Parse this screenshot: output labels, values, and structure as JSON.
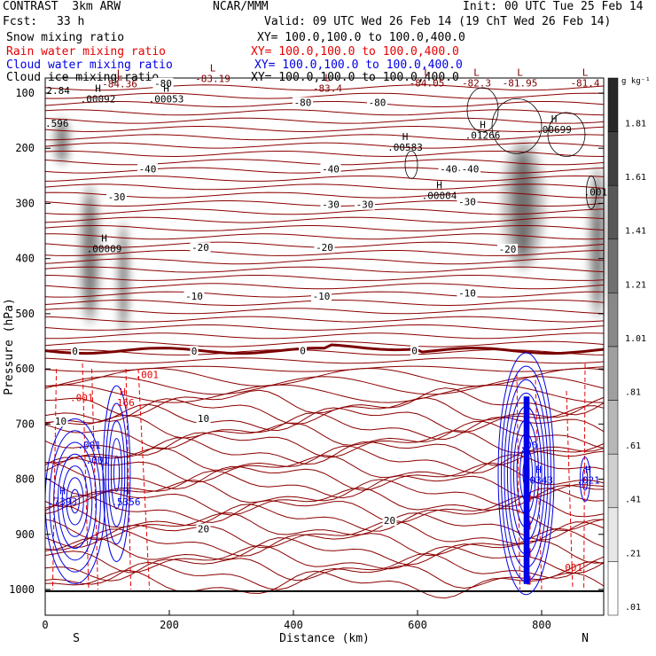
{
  "header": {
    "line1_left": "CONTRAST  3km ARW",
    "line1_center": "NCAR/MMM",
    "line1_right": "Init: 00 UTC Tue 25 Feb 14",
    "fcst_label": "Fcst:",
    "fcst_value": "33 h",
    "valid": "Valid: 09 UTC Wed 26 Feb 14 (19 ChT Wed 26 Feb 14)"
  },
  "fields": [
    {
      "name": "Snow mixing ratio",
      "xy": "XY= 100.0,100.0 to 100.0,400.0",
      "color": "#000000"
    },
    {
      "name": "Rain water mixing ratio",
      "xy": "XY= 100.0,100.0 to 100.0,400.0",
      "color": "#e60000"
    },
    {
      "name": "Cloud water mixing ratio",
      "xy": "XY= 100.0,100.0 to 100.0,400.0",
      "color": "#0000e6"
    },
    {
      "name": "Cloud ice mixing ratio",
      "xy": "XY= 100.0,100.0 to 100.0,400.0",
      "color": "#000000"
    }
  ],
  "colorbar": {
    "unit": "g kg⁻¹",
    "labels": [
      "1.81",
      "1.61",
      "1.41",
      "1.21",
      "1.01",
      ".81",
      ".61",
      ".41",
      ".21",
      ".01"
    ]
  },
  "chart_data": {
    "type": "contour",
    "xlabel": "Distance (km)",
    "ylabel": "Pressure (hPa)",
    "xlim": [
      0,
      900
    ],
    "ylim": [
      1000,
      60
    ],
    "x_ticks": [
      0,
      200,
      400,
      600,
      800
    ],
    "y_ticks": [
      100,
      200,
      300,
      400,
      500,
      600,
      700,
      800,
      900,
      1000
    ],
    "x_end_labels": {
      "left": "S",
      "right": "N"
    },
    "temperature_contours": [
      {
        "label": "-80",
        "x": 190,
        "p": 82
      },
      {
        "label": "-80",
        "x": 415,
        "p": 117
      },
      {
        "label": "-80",
        "x": 535,
        "p": 117
      },
      {
        "label": "-40",
        "x": 165,
        "p": 237
      },
      {
        "label": "-40",
        "x": 460,
        "p": 237
      },
      {
        "label": "-40",
        "x": 685,
        "p": 237
      },
      {
        "label": "-40",
        "x": 650,
        "p": 237
      },
      {
        "label": "-30",
        "x": 115,
        "p": 288
      },
      {
        "label": "-30",
        "x": 460,
        "p": 302
      },
      {
        "label": "-30",
        "x": 515,
        "p": 302
      },
      {
        "label": "-30",
        "x": 680,
        "p": 297
      },
      {
        "label": "-20",
        "x": 250,
        "p": 380
      },
      {
        "label": "-20",
        "x": 450,
        "p": 380
      },
      {
        "label": "-20",
        "x": 745,
        "p": 383
      },
      {
        "label": "-10",
        "x": 240,
        "p": 468
      },
      {
        "label": "-10",
        "x": 445,
        "p": 468
      },
      {
        "label": "-10",
        "x": 680,
        "p": 462
      },
      {
        "label": "0",
        "x": 48,
        "p": 568
      },
      {
        "label": "0",
        "x": 240,
        "p": 568
      },
      {
        "label": "0",
        "x": 415,
        "p": 567
      },
      {
        "label": "0",
        "x": 595,
        "p": 567
      },
      {
        "label": "10",
        "x": 25,
        "p": 695
      },
      {
        "label": "10",
        "x": 255,
        "p": 690
      },
      {
        "label": "20",
        "x": 255,
        "p": 890
      },
      {
        "label": "20",
        "x": 555,
        "p": 875
      }
    ],
    "extrema": [
      {
        "type": "L",
        "label": "",
        "x": 120,
        "p": 70,
        "color": "#800000"
      },
      {
        "type": "L",
        "label": "-84.36",
        "x": 120,
        "p": 80,
        "color": "#800000"
      },
      {
        "type": "L",
        "label": "-83.19",
        "x": 270,
        "p": 70,
        "color": "#800000"
      },
      {
        "type": "L",
        "label": "-83.4",
        "x": 455,
        "p": 88,
        "color": "#800000"
      },
      {
        "type": "L",
        "label": "-84.05",
        "x": 615,
        "p": 78,
        "color": "#800000"
      },
      {
        "type": "L",
        "label": "-82.3",
        "x": 695,
        "p": 78,
        "color": "#800000"
      },
      {
        "type": "L",
        "label": "-81.95",
        "x": 765,
        "p": 78,
        "color": "#800000"
      },
      {
        "type": "L",
        "label": "-81.4",
        "x": 870,
        "p": 78,
        "color": "#800000"
      },
      {
        "type": "H",
        "label": ".00092",
        "x": 85,
        "p": 107,
        "color": "#000000"
      },
      {
        "type": "H",
        "label": ".00053",
        "x": 195,
        "p": 107,
        "color": "#000000"
      },
      {
        "type": "H",
        "label": ".00583",
        "x": 580,
        "p": 195,
        "color": "#000000"
      },
      {
        "type": "H",
        "label": ".01266",
        "x": 705,
        "p": 173,
        "color": "#000000"
      },
      {
        "type": "H",
        "label": ".00699",
        "x": 820,
        "p": 163,
        "color": "#000000"
      },
      {
        "type": "H",
        "label": ".00004",
        "x": 635,
        "p": 282,
        "color": "#000000"
      },
      {
        "type": "H",
        "label": ".00009",
        "x": 95,
        "p": 379,
        "color": "#000000"
      },
      {
        "type": "H",
        "label": ".166",
        "x": 125,
        "p": 658,
        "color": "#e60000"
      },
      {
        "type": "H",
        "label": ".7393",
        "x": 28,
        "p": 837,
        "color": "#0000e6"
      },
      {
        "type": "H",
        "label": ".5356",
        "x": 130,
        "p": 838,
        "color": "#0000e6"
      },
      {
        "type": "H",
        "label": ".0343",
        "x": 795,
        "p": 798,
        "color": "#0000e6"
      },
      {
        "type": "H",
        "label": ".021",
        "x": 875,
        "p": 798,
        "color": "#0000e6"
      }
    ],
    "field_labels": [
      {
        "label": "2.84",
        "x": 2,
        "p": 95,
        "color": "#000000"
      },
      {
        "label": ".596",
        "x": 0,
        "p": 155,
        "color": "#000000"
      },
      {
        "label": ".001",
        "x": 868,
        "p": 279,
        "color": "#000000"
      },
      {
        "label": ".001",
        "x": 145,
        "p": 610,
        "color": "#e60000"
      },
      {
        "label": ".001",
        "x": 40,
        "p": 652,
        "color": "#e60000"
      },
      {
        "label": ".001",
        "x": 828,
        "p": 960,
        "color": "#e60000"
      },
      {
        "label": ".001",
        "x": 52,
        "p": 738,
        "color": "#0000e6"
      },
      {
        "label": ".001",
        "x": 65,
        "p": 765,
        "color": "#0000e6"
      },
      {
        "label": ".00",
        "x": 765,
        "p": 738,
        "color": "#0000e6"
      }
    ],
    "snow_shading": [
      {
        "x": 72,
        "p_top": 265,
        "p_bot": 520,
        "dx": 18,
        "max": 1.21
      },
      {
        "x": 126,
        "p_top": 330,
        "p_bot": 540,
        "dx": 10,
        "max": 1.21
      },
      {
        "x": 27,
        "p_top": 145,
        "p_bot": 230,
        "dx": 14,
        "max": 0.81
      },
      {
        "x": 770,
        "p_top": 185,
        "p_bot": 420,
        "dx": 35,
        "max": 1.01
      },
      {
        "x": 890,
        "p_top": 230,
        "p_bot": 510,
        "dx": 15,
        "max": 0.81
      }
    ]
  }
}
